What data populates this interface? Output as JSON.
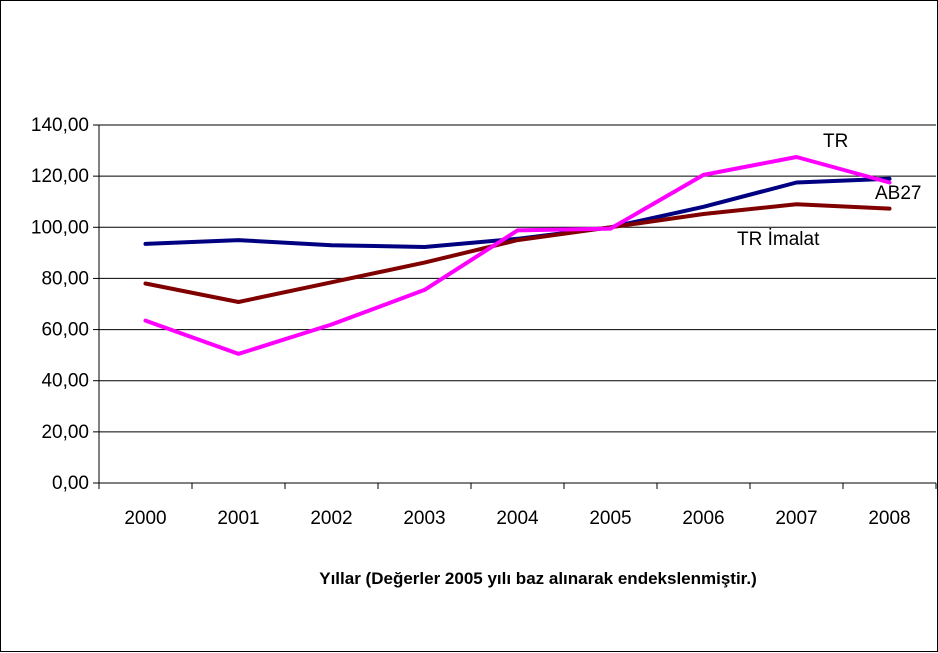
{
  "chart_data": {
    "type": "line",
    "title": "",
    "xlabel": "Yıllar (Değerler 2005 yılı baz alınarak endekslenmiştir.)",
    "ylabel": "",
    "categories": [
      "2000",
      "2001",
      "2002",
      "2003",
      "2004",
      "2005",
      "2006",
      "2007",
      "2008"
    ],
    "ylim": [
      0,
      140
    ],
    "yticks": [
      0,
      20,
      40,
      60,
      80,
      100,
      120,
      140
    ],
    "ytick_labels": [
      "0,00",
      "20,00",
      "40,00",
      "60,00",
      "80,00",
      "100,00",
      "120,00",
      "140,00"
    ],
    "grid": true,
    "legend": "inline labels",
    "series": [
      {
        "name": "AB27",
        "color": "#000080",
        "values": [
          93.5,
          95.0,
          93.0,
          92.3,
          95.5,
          100.0,
          108.0,
          117.5,
          119.0
        ]
      },
      {
        "name": "TR İmalat",
        "color": "#800000",
        "values": [
          78.0,
          70.8,
          78.5,
          86.2,
          95.0,
          100.0,
          105.2,
          109.0,
          107.3
        ]
      },
      {
        "name": "TR",
        "color": "#FF00FF",
        "values": [
          63.5,
          50.5,
          62.0,
          75.5,
          98.8,
          99.5,
          120.5,
          127.5,
          117.5
        ]
      }
    ]
  }
}
